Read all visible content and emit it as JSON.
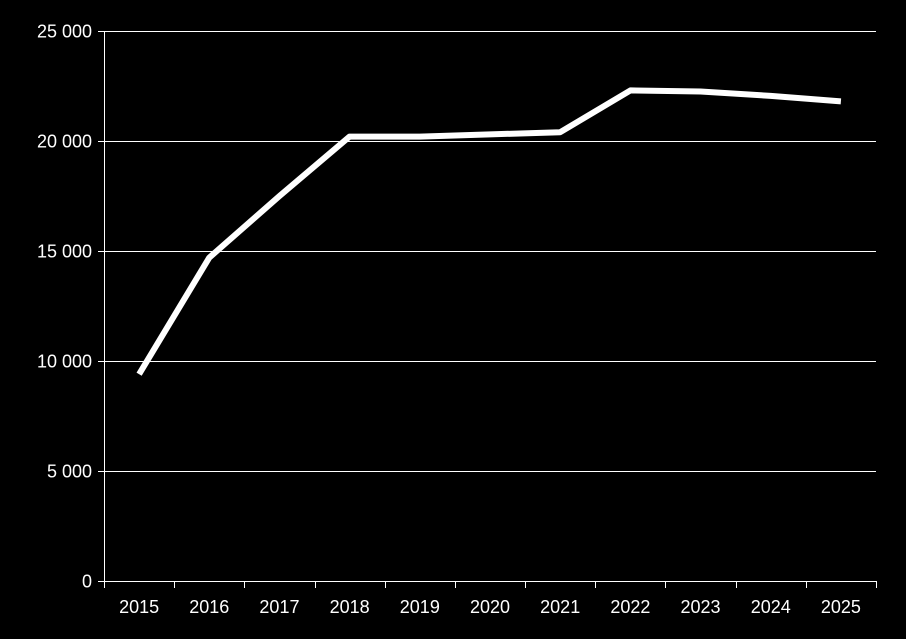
{
  "chart_data": {
    "type": "line",
    "title": "",
    "xlabel": "",
    "ylabel": "",
    "categories": [
      "2015",
      "2016",
      "2017",
      "2018",
      "2019",
      "2020",
      "2021",
      "2022",
      "2023",
      "2024",
      "2025"
    ],
    "series": [
      {
        "values": [
          9400,
          14700,
          17500,
          20200,
          20200,
          20300,
          20400,
          22300,
          22250,
          22050,
          21800
        ]
      }
    ],
    "ylim": [
      0,
      25000
    ],
    "yticks": [
      0,
      5000,
      10000,
      15000,
      20000,
      25000
    ],
    "ytick_labels": [
      "0",
      "5 000",
      "10 000",
      "15 000",
      "20 000",
      "25 000"
    ],
    "grid": "horizontal",
    "legend": "none",
    "colors": {
      "background": "#000000",
      "line": "#ffffff",
      "grid": "#ffffff",
      "axis": "#ffffff",
      "text": "#ffffff"
    }
  }
}
